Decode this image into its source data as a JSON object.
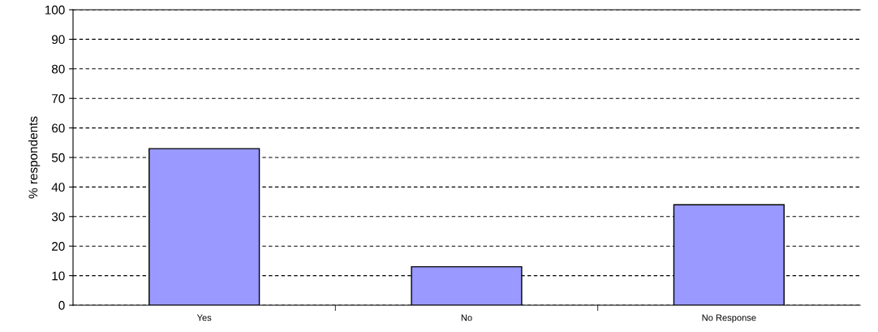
{
  "chart_data": {
    "type": "bar",
    "ylabel": "% respondents",
    "categories": [
      "Yes",
      "No",
      "No Response"
    ],
    "values": [
      53,
      13,
      34
    ],
    "color": "#9999ff",
    "ylim": [
      0,
      100
    ],
    "yticks": [
      0,
      10,
      20,
      30,
      40,
      50,
      60,
      70,
      80,
      90,
      100
    ],
    "grid": "y",
    "legend": false
  }
}
